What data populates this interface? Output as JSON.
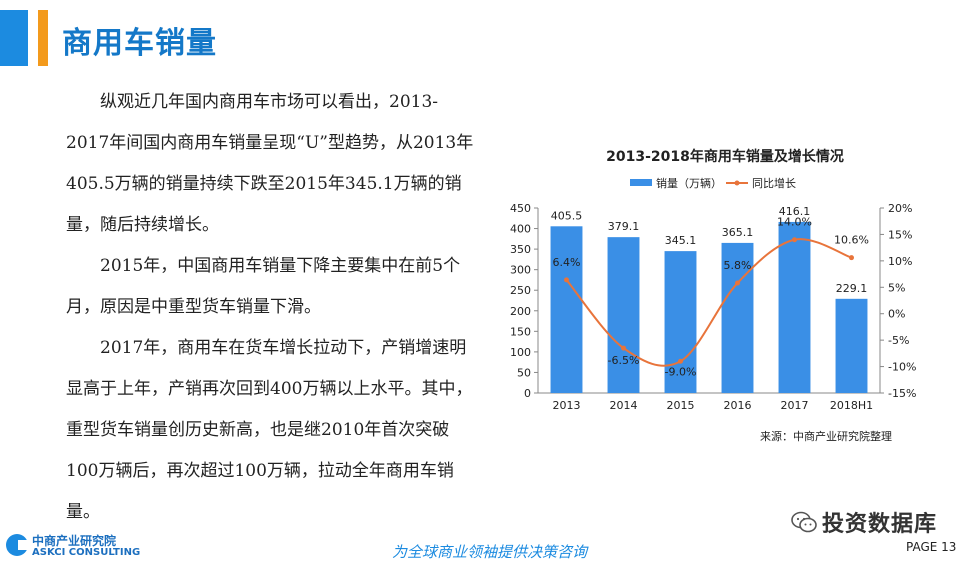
{
  "header": {
    "title": "商用车销量"
  },
  "paragraphs": [
    "纵观近几年国内商用车市场可以看出，2013-2017年间国内商用车销量呈现“U”型趋势，从2013年405.5万辆的销量持续下跌至2015年345.1万辆的销量，随后持续增长。",
    "2015年，中国商用车销量下降主要集中在前5个月，原因是中重型货车销量下滑。",
    "2017年，商用车在货车增长拉动下，产销增速明显高于上年，产销再次回到400万辆以上水平。其中，重型货车销量创历史新高，也是继2010年首次突破100万辆后，再次超过100万辆，拉动全年商用车销量。"
  ],
  "chart_data": {
    "type": "bar",
    "title": "2013-2018年商用车销量及增长情况",
    "categories": [
      "2013",
      "2014",
      "2015",
      "2016",
      "2017",
      "2018H1"
    ],
    "series": [
      {
        "name": "销量（万辆）",
        "type": "bar",
        "axis": "left",
        "values": [
          405.5,
          379.1,
          345.1,
          365.1,
          416.1,
          229.1
        ],
        "color": "#3a8fe6",
        "labels": [
          "405.5",
          "379.1",
          "345.1",
          "365.1",
          "416.1",
          "229.1"
        ]
      },
      {
        "name": "同比增长",
        "type": "line",
        "axis": "right",
        "values": [
          6.4,
          -6.5,
          -9.0,
          5.8,
          14.0,
          10.6
        ],
        "color": "#e8743b",
        "labels": [
          "6.4%",
          "-6.5%",
          "-9.0%",
          "5.8%",
          "14.0%",
          "10.6%"
        ]
      }
    ],
    "y_left": {
      "min": 0,
      "max": 450,
      "ticks": [
        "0",
        "50",
        "100",
        "150",
        "200",
        "250",
        "300",
        "350",
        "400",
        "450"
      ]
    },
    "y_right": {
      "min": -15,
      "max": 20,
      "ticks": [
        "-15%",
        "-10%",
        "-5%",
        "0%",
        "5%",
        "10%",
        "15%",
        "20%"
      ]
    },
    "legend_position": "top"
  },
  "source": "来源：中商产业研究院整理",
  "footer": {
    "logo_name": "中商产业研究院",
    "logo_sub": "ASKCI CONSULTING",
    "slogan": "为全球商业领袖提供决策咨询",
    "watermark": "投资数据库",
    "page": "PAGE 13"
  }
}
